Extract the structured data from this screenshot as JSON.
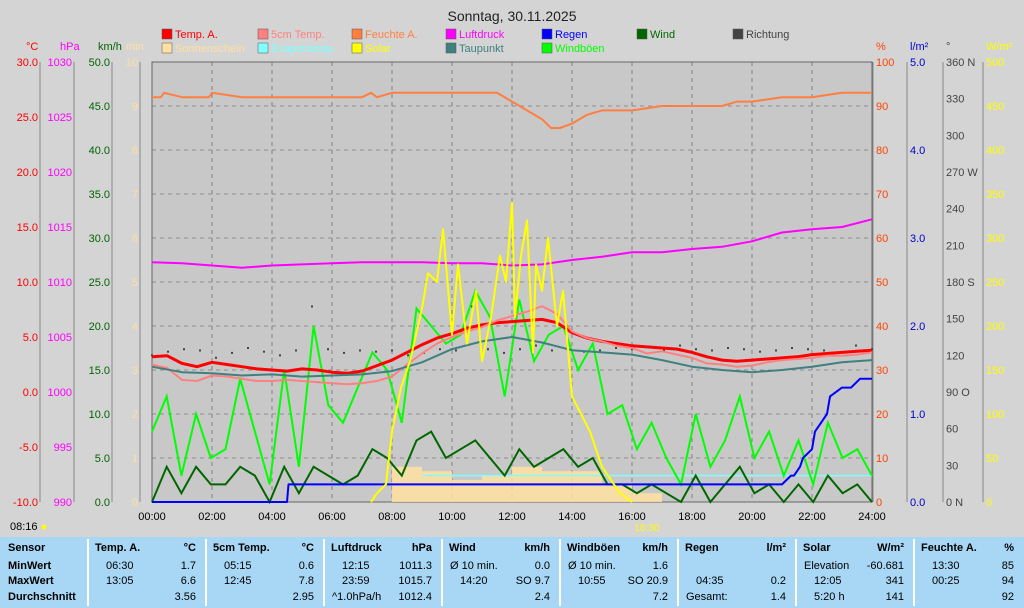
{
  "chart_data": {
    "type": "line",
    "title": "Sonntag, 30.11.2025",
    "x_ticks": [
      "00:00",
      "02:00",
      "04:00",
      "06:00",
      "08:00",
      "10:00",
      "12:00",
      "14:00",
      "16:00",
      "18:00",
      "20:00",
      "22:00",
      "24:00"
    ],
    "left_axes": [
      {
        "label": "°C",
        "color": "#ff0000",
        "ticks": [
          "30.0",
          "25.0",
          "20.0",
          "15.0",
          "10.0",
          "5.0",
          "0.0",
          "-5.0",
          "-10.0"
        ],
        "range": [
          -10,
          30
        ]
      },
      {
        "label": "hPa",
        "color": "#ff00ff",
        "ticks": [
          "1030",
          "1025",
          "1020",
          "1015",
          "1010",
          "1005",
          "1000",
          "995",
          "990"
        ],
        "range": [
          990,
          1030
        ]
      },
      {
        "label": "km/h",
        "color": "#006600",
        "ticks": [
          "50.0",
          "45.0",
          "40.0",
          "35.0",
          "30.0",
          "25.0",
          "20.0",
          "15.0",
          "10.0",
          "5.0",
          "0.0"
        ],
        "range": [
          0,
          50
        ]
      },
      {
        "label": "min",
        "color": "#ffe0a0",
        "ticks": [
          "10",
          "9",
          "8",
          "7",
          "6",
          "5",
          "4",
          "3",
          "2",
          "1",
          "0"
        ],
        "range": [
          0,
          10
        ]
      }
    ],
    "right_axes": [
      {
        "label": "%",
        "color": "#ff4400",
        "ticks": [
          "100",
          "90",
          "80",
          "70",
          "60",
          "50",
          "40",
          "30",
          "20",
          "10",
          "0"
        ],
        "range": [
          0,
          100
        ]
      },
      {
        "label": "l/m²",
        "color": "#0000cc",
        "ticks": [
          "5.0",
          "4.0",
          "3.0",
          "2.0",
          "1.0",
          "0.0"
        ],
        "range": [
          0,
          5
        ]
      },
      {
        "label": "°",
        "color": "#444444",
        "ticks": [
          "360 N",
          "330",
          "300",
          "270 W",
          "240",
          "210",
          "180 S",
          "150",
          "120",
          "90 O",
          "60",
          "30",
          "0 N"
        ],
        "range": [
          0,
          360
        ]
      },
      {
        "label": "W/m²",
        "color": "#ffff00",
        "ticks": [
          "500",
          "450",
          "400",
          "350",
          "300",
          "250",
          "200",
          "150",
          "100",
          "50",
          "0"
        ],
        "range": [
          0,
          500
        ]
      }
    ],
    "legend": [
      {
        "name": "Temp. A.",
        "color": "#ff0000"
      },
      {
        "name": "5cm Temp.",
        "color": "#ff8080"
      },
      {
        "name": "Feuchte A.",
        "color": "#ff7f40"
      },
      {
        "name": "Luftdruck",
        "color": "#ff00ff"
      },
      {
        "name": "Regen",
        "color": "#0000ff"
      },
      {
        "name": "Wind",
        "color": "#006600"
      },
      {
        "name": "Richtung",
        "color": "#444444"
      },
      {
        "name": "Sonnenschein",
        "color": "#ffe0a0"
      },
      {
        "name": "Evapotransp.",
        "color": "#80ffff"
      },
      {
        "name": "Solar",
        "color": "#ffff00"
      },
      {
        "name": "Taupunkt",
        "color": "#408080"
      },
      {
        "name": "Windböen",
        "color": "#00ff00"
      }
    ],
    "series": [
      {
        "name": "Temp. A.",
        "unit": "°C",
        "x": [
          0,
          0.5,
          1,
          1.5,
          2,
          2.5,
          3,
          3.5,
          4,
          4.5,
          5,
          5.5,
          6,
          6.5,
          7,
          7.5,
          8,
          8.5,
          9,
          9.5,
          10,
          10.5,
          11,
          11.5,
          12,
          12.5,
          13,
          13.5,
          14,
          14.5,
          15,
          15.5,
          16,
          16.5,
          17,
          17.5,
          18,
          18.5,
          19,
          19.5,
          20,
          20.5,
          21,
          21.5,
          22,
          22.5,
          23,
          23.5,
          24
        ],
        "y": [
          3.2,
          3.3,
          2.6,
          2.3,
          2.7,
          2.5,
          2.3,
          2.1,
          2.0,
          1.9,
          2.1,
          2.0,
          1.8,
          1.7,
          1.9,
          2.4,
          2.9,
          3.6,
          4.3,
          4.9,
          5.3,
          5.8,
          6.1,
          6.3,
          6.4,
          6.5,
          6.6,
          6.3,
          5.4,
          4.9,
          4.6,
          4.4,
          4.2,
          4.1,
          4.0,
          3.9,
          3.6,
          3.2,
          2.9,
          2.8,
          2.9,
          3.0,
          3.1,
          3.2,
          3.4,
          3.5,
          3.6,
          3.7,
          3.8
        ]
      },
      {
        "name": "5cm Temp.",
        "unit": "°C",
        "x": [
          0,
          0.5,
          1,
          1.5,
          2,
          2.5,
          3,
          3.5,
          4,
          4.5,
          5,
          5.5,
          6,
          6.5,
          7,
          7.5,
          8,
          8.5,
          9,
          9.5,
          10,
          10.5,
          11,
          11.5,
          12,
          12.5,
          13,
          13.5,
          14,
          14.5,
          15,
          15.5,
          16,
          16.5,
          17,
          17.5,
          18,
          18.5,
          19,
          19.5,
          20,
          20.5,
          21,
          21.5,
          22,
          22.5,
          23,
          23.5,
          24
        ],
        "y": [
          2.5,
          2.2,
          1.1,
          1.0,
          1.5,
          1.4,
          1.2,
          1.0,
          1.0,
          1.1,
          1.0,
          0.9,
          0.8,
          0.7,
          0.8,
          1.0,
          1.4,
          2.5,
          3.5,
          4.4,
          5.0,
          5.5,
          5.9,
          6.5,
          6.9,
          7.3,
          7.8,
          7.1,
          5.5,
          4.9,
          4.6,
          4.2,
          4.0,
          3.5,
          3.7,
          3.4,
          3.1,
          2.6,
          2.5,
          2.3,
          2.4,
          2.7,
          2.9,
          3.0,
          3.1,
          3.3,
          3.3,
          3.4,
          3.6
        ]
      },
      {
        "name": "Taupunkt",
        "unit": "°C",
        "x": [
          0,
          1,
          2,
          3,
          4,
          5,
          6,
          7,
          8,
          9,
          10,
          11,
          12,
          13,
          14,
          15,
          16,
          17,
          18,
          19,
          20,
          21,
          22,
          23,
          24
        ],
        "y": [
          2.3,
          1.8,
          1.7,
          1.5,
          1.6,
          1.4,
          1.5,
          1.6,
          1.9,
          2.7,
          3.9,
          4.6,
          5.0,
          4.5,
          3.8,
          3.6,
          3.4,
          2.9,
          2.3,
          2.0,
          1.8,
          2.0,
          2.3,
          2.7,
          2.9
        ]
      },
      {
        "name": "Feuchte A.",
        "unit": "%",
        "x": [
          0,
          0.3,
          0.4,
          1,
          1.9,
          2,
          3,
          4,
          5,
          6,
          7,
          7.3,
          7.5,
          8,
          9,
          10,
          11,
          11.5,
          12,
          12.5,
          13,
          13.3,
          13.6,
          14,
          14.5,
          15,
          16,
          17,
          18,
          19,
          19.5,
          20,
          21,
          22,
          23,
          24
        ],
        "y": [
          92,
          92,
          93,
          92,
          92,
          93,
          92,
          92,
          92,
          92,
          92,
          93,
          92,
          93,
          93,
          93,
          93,
          93,
          91,
          89,
          87,
          85,
          85,
          86,
          88,
          89,
          89,
          90,
          90,
          90,
          91,
          91,
          92,
          92,
          93,
          93
        ]
      },
      {
        "name": "Luftdruck",
        "unit": "hPa",
        "x": [
          0,
          1,
          2,
          3,
          4,
          5,
          6,
          7,
          8,
          9,
          10,
          11,
          12,
          13,
          14,
          15,
          16,
          17,
          18,
          19,
          20,
          21,
          22,
          23,
          24
        ],
        "y": [
          1011.8,
          1011.7,
          1011.5,
          1011.3,
          1011.5,
          1011.6,
          1011.7,
          1011.8,
          1011.8,
          1011.8,
          1011.7,
          1011.7,
          1011.5,
          1011.6,
          1012.0,
          1012.3,
          1012.7,
          1012.7,
          1013.0,
          1013.2,
          1013.7,
          1014.5,
          1014.8,
          1015.0,
          1015.7
        ]
      },
      {
        "name": "Regen",
        "unit": "l/m²",
        "x": [
          0,
          4.5,
          4.55,
          21,
          21.3,
          21.4,
          21.6,
          21.7,
          22,
          22.1,
          22.5,
          22.6,
          23,
          23.3,
          23.6,
          24
        ],
        "y": [
          0,
          0,
          0.2,
          0.2,
          0.3,
          0.3,
          0.4,
          0.5,
          0.6,
          0.8,
          1.0,
          1.2,
          1.3,
          1.3,
          1.4,
          1.4
        ]
      },
      {
        "name": "Solar",
        "unit": "W/m²",
        "x": [
          7.3,
          7.5,
          7.8,
          8,
          8.3,
          8.6,
          9,
          9.2,
          9.5,
          9.7,
          10,
          10.2,
          10.5,
          10.8,
          11,
          11.3,
          11.6,
          11.8,
          12,
          12.1,
          12.3,
          12.5,
          12.7,
          12.8,
          13,
          13.2,
          13.5,
          13.7,
          14,
          14.3,
          14.6,
          14.8,
          15,
          15.2,
          15.4,
          15.6,
          16
        ],
        "y": [
          0,
          10,
          20,
          80,
          130,
          160,
          220,
          260,
          250,
          310,
          190,
          270,
          180,
          240,
          160,
          210,
          280,
          250,
          340,
          210,
          280,
          320,
          170,
          270,
          240,
          300,
          200,
          240,
          120,
          100,
          80,
          60,
          40,
          30,
          20,
          10,
          0
        ]
      }
    ],
    "wind_avg_kmh": [
      0,
      4,
      1,
      4,
      2,
      2,
      4,
      3,
      0,
      4,
      1,
      4,
      3,
      2,
      3,
      6,
      5,
      3,
      7,
      8,
      5,
      6,
      7,
      5,
      3,
      6,
      4,
      5,
      6,
      4,
      5,
      2,
      2,
      1,
      2,
      1,
      0,
      3,
      0,
      2,
      4,
      1,
      2,
      0,
      2,
      0,
      3,
      1,
      2,
      0
    ],
    "gust_kmh": [
      8,
      12,
      3,
      10,
      5,
      6,
      14,
      8,
      2,
      15,
      4,
      20,
      11,
      9,
      13,
      17,
      15,
      9,
      22,
      20,
      18,
      19,
      24,
      21,
      12,
      23,
      16,
      19,
      20,
      15,
      18,
      10,
      11,
      6,
      9,
      5,
      2,
      10,
      4,
      7,
      12,
      5,
      8,
      3,
      7,
      2,
      9,
      5,
      6,
      3
    ],
    "direction_deg": [
      120,
      123,
      125,
      124,
      118,
      122,
      126,
      123,
      120,
      124,
      160,
      125,
      122,
      124,
      123,
      124,
      120,
      122,
      125,
      124,
      160,
      125,
      122,
      125,
      128,
      124,
      124,
      123,
      124,
      126,
      125,
      127,
      124,
      128,
      125,
      124,
      126,
      125,
      123,
      124,
      126,
      125,
      124,
      122,
      128,
      125
    ],
    "sunshine_min": [
      0,
      0,
      0,
      0,
      0,
      0,
      0,
      0,
      0.8,
      0.7,
      0.5,
      0.6,
      0.8,
      0.7,
      0.7,
      0.4,
      0.2,
      0,
      0,
      0,
      0,
      0,
      0,
      0,
      0
    ]
  },
  "footer": {
    "sunrise": "08:16",
    "sunset": "16:30"
  },
  "table": [
    {
      "name": "Sensor",
      "unit": "",
      "rows": [
        "MinWert",
        "MaxWert",
        "Durchschnitt"
      ]
    },
    {
      "name": "Temp. A.",
      "unit": "°C",
      "rows": [
        [
          "06:30",
          "1.7"
        ],
        [
          "13:05",
          "6.6"
        ],
        [
          "",
          "3.56"
        ]
      ]
    },
    {
      "name": "5cm Temp.",
      "unit": "°C",
      "rows": [
        [
          "05:15",
          "0.6"
        ],
        [
          "12:45",
          "7.8"
        ],
        [
          "",
          "2.95"
        ]
      ]
    },
    {
      "name": "Luftdruck",
      "unit": "hPa",
      "rows": [
        [
          "12:15",
          "1011.3"
        ],
        [
          "23:59",
          "1015.7"
        ],
        [
          "^1.0hPa/h",
          "1012.4"
        ]
      ]
    },
    {
      "name": "Wind",
      "unit": "km/h",
      "rows": [
        [
          "Ø 10 min.",
          "0.0"
        ],
        [
          "14:20",
          "SO 9.7"
        ],
        [
          "",
          "2.4"
        ]
      ]
    },
    {
      "name": "Windböen",
      "unit": "km/h",
      "rows": [
        [
          "Ø 10 min.",
          "1.6"
        ],
        [
          "10:55",
          "SO 20.9"
        ],
        [
          "",
          "7.2"
        ]
      ]
    },
    {
      "name": "Regen",
      "unit": "l/m²",
      "rows": [
        [
          "",
          ""
        ],
        [
          "04:35",
          "0.2"
        ],
        [
          "Gesamt:",
          "1.4"
        ]
      ]
    },
    {
      "name": "Solar",
      "unit": "W/m²",
      "rows": [
        [
          "Elevation",
          "-60.681"
        ],
        [
          "12:05",
          "341"
        ],
        [
          "5:20 h",
          "141"
        ]
      ]
    },
    {
      "name": "Feuchte A.",
      "unit": "%",
      "rows": [
        [
          "13:30",
          "85"
        ],
        [
          "00:25",
          "94"
        ],
        [
          "",
          "92"
        ]
      ]
    }
  ]
}
